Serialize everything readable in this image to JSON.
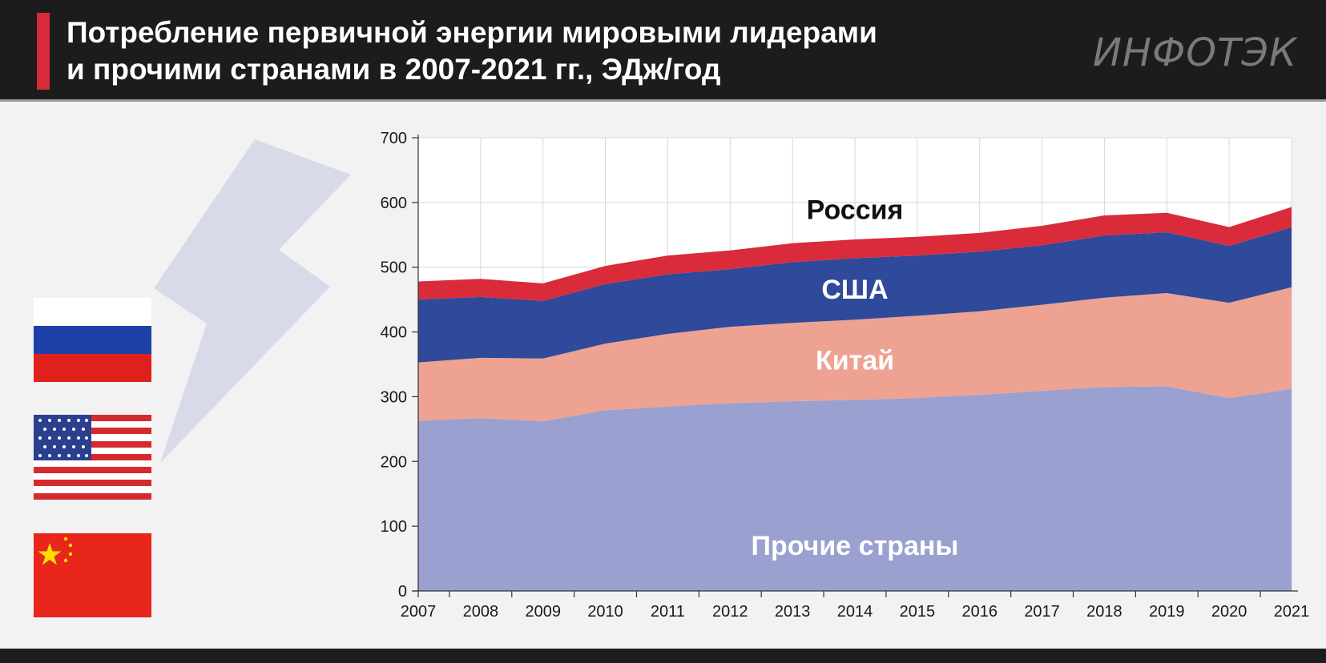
{
  "header": {
    "title_line1": "Потребление первичной энергии мировыми лидерами",
    "title_line2": "и прочими странами в 2007-2021 гг., ЭДж/год",
    "brand": "ИНФОТЭК"
  },
  "colors": {
    "header_bg": "#1c1c1c",
    "accent_red": "#d62b38",
    "other": "#9aa0cf",
    "china": "#eea292",
    "usa": "#2f4a9a",
    "russia": "#d92b3a",
    "bolt": "#d9dae9",
    "label_dark": "#111111",
    "label_light": "#ffffff"
  },
  "icons": [
    "lightning-bolt-icon",
    "russia-flag-icon",
    "usa-flag-icon",
    "china-flag-icon"
  ],
  "chart_data": {
    "type": "area",
    "stacked": true,
    "title": "Потребление первичной энергии мировыми лидерами и прочими странами в 2007-2021 гг., ЭДж/год",
    "x": [
      "2007",
      "2008",
      "2009",
      "2010",
      "2011",
      "2012",
      "2013",
      "2014",
      "2015",
      "2016",
      "2017",
      "2018",
      "2019",
      "2020",
      "2021"
    ],
    "ylim": [
      0,
      700
    ],
    "yticks": [
      0,
      100,
      200,
      300,
      400,
      500,
      600,
      700
    ],
    "grid": true,
    "series": [
      {
        "name": "Прочие страны",
        "values": [
          263,
          267,
          262,
          279,
          285,
          290,
          293,
          295,
          298,
          303,
          309,
          315,
          316,
          298,
          312
        ]
      },
      {
        "name": "Китай",
        "values": [
          90,
          93,
          97,
          103,
          112,
          118,
          121,
          124,
          127,
          129,
          133,
          138,
          144,
          147,
          157
        ]
      },
      {
        "name": "США",
        "values": [
          97,
          94,
          89,
          92,
          92,
          89,
          94,
          95,
          93,
          92,
          92,
          96,
          94,
          88,
          93
        ]
      },
      {
        "name": "Россия",
        "values": [
          28,
          28,
          27,
          28,
          29,
          29,
          29,
          29,
          29,
          29,
          30,
          31,
          30,
          29,
          31
        ]
      }
    ]
  }
}
